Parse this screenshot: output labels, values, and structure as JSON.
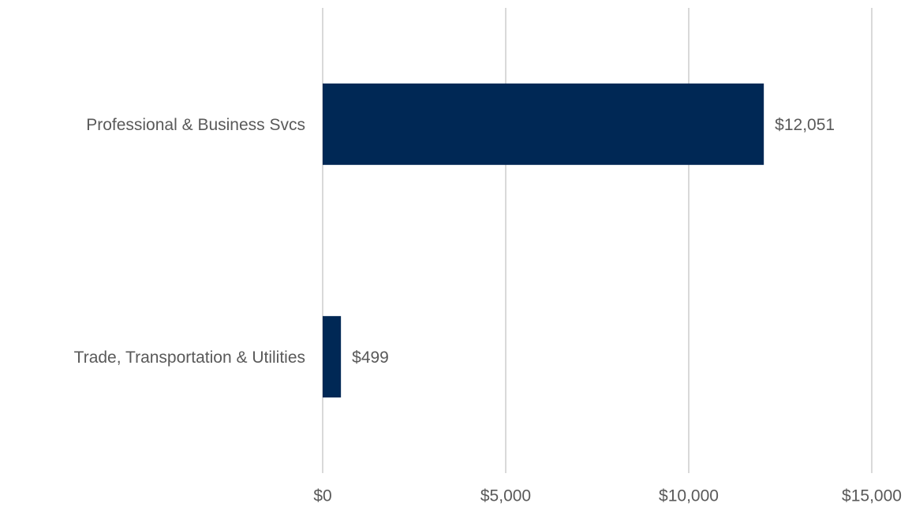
{
  "chart_data": {
    "type": "bar",
    "horizontal": true,
    "categories": [
      "Professional & Business Svcs",
      "Trade, Transportation & Utilities"
    ],
    "values": [
      12051,
      499
    ],
    "value_labels": [
      "$12,051",
      "$499"
    ],
    "color": "#002855",
    "xlim": [
      0,
      15000
    ],
    "xticks": [
      {
        "value": 0,
        "label": "$0"
      },
      {
        "value": 5000,
        "label": "$5,000"
      },
      {
        "value": 10000,
        "label": "$10,000"
      },
      {
        "value": 15000,
        "label": "$15,000"
      }
    ],
    "grid": true
  }
}
